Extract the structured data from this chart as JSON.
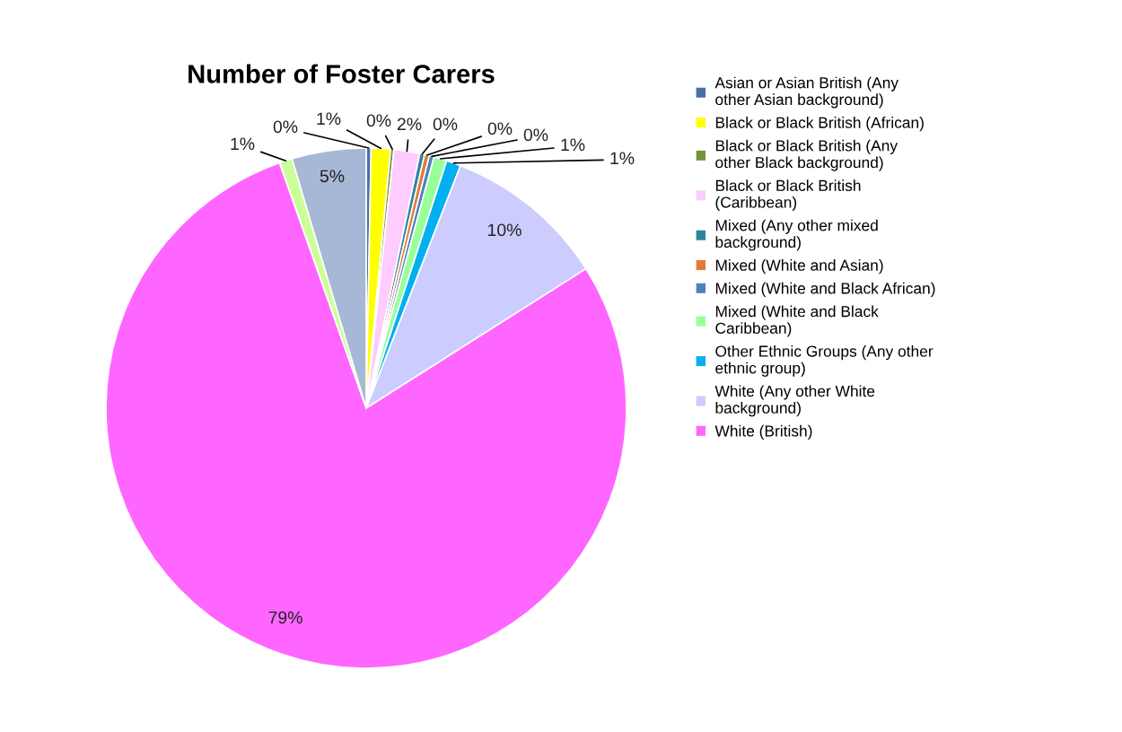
{
  "chart_data": {
    "type": "pie",
    "title": "Number of Foster Carers",
    "categories": [
      "Asian or Asian British (Any other Asian background)",
      "Black or Black British (African)",
      "Black or Black British (Any other Black background)",
      "Black or Black British (Caribbean)",
      "Mixed (Any other mixed background)",
      "Mixed (White and Asian)",
      "Mixed (White and Black African)",
      "Mixed (White and Black Caribbean)",
      "Other Ethnic Groups (Any other ethnic group)",
      "White (Any other White background)",
      "White (British)",
      null,
      null
    ],
    "values": [
      0.3,
      1.2,
      0.2,
      1.6,
      0.3,
      0.3,
      0.3,
      0.8,
      0.9,
      10.1,
      78.6,
      0.8,
      4.6
    ],
    "value_labels": [
      "0%",
      "1%",
      "0%",
      "2%",
      "0%",
      "0%",
      "0%",
      "1%",
      "1%",
      "10%",
      "79%",
      "1%",
      "5%"
    ],
    "colors": [
      "#4a6fa5",
      "#ffff00",
      "#77933c",
      "#ffccff",
      "#31849b",
      "#e07b39",
      "#4f81bd",
      "#99ff99",
      "#00b0f0",
      "#ccccff",
      "#ff66ff",
      "#ccff99",
      "#a6b8d6"
    ],
    "legend": "right"
  }
}
